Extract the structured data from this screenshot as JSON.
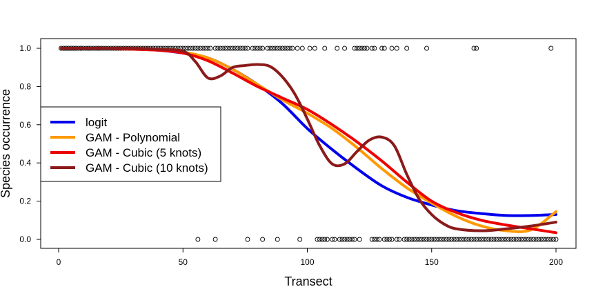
{
  "chart_data": {
    "type": "line",
    "title": "",
    "xlabel": "Transect",
    "ylabel": "Species occurrence",
    "xlim": [
      0,
      200
    ],
    "ylim": [
      0,
      1
    ],
    "x_ticks": [
      0,
      50,
      100,
      150,
      200
    ],
    "y_ticks": [
      0.0,
      0.2,
      0.4,
      0.6,
      0.8,
      1.0
    ],
    "x_tick_labels": [
      "0",
      "50",
      "100",
      "150",
      "200"
    ],
    "y_tick_labels": [
      "0.0",
      "0.2",
      "0.4",
      "0.6",
      "0.8",
      "1.0"
    ],
    "grid": false,
    "legend_position": "left",
    "series": [
      {
        "name": "logit",
        "color": "#0000ee",
        "x": [
          1,
          10,
          20,
          30,
          40,
          50,
          60,
          70,
          80,
          90,
          100,
          110,
          120,
          130,
          140,
          150,
          160,
          170,
          180,
          190,
          200
        ],
        "y": [
          1.0,
          1.0,
          1.0,
          0.995,
          0.99,
          0.975,
          0.95,
          0.89,
          0.81,
          0.71,
          0.58,
          0.47,
          0.37,
          0.28,
          0.22,
          0.18,
          0.15,
          0.135,
          0.125,
          0.125,
          0.13
        ]
      },
      {
        "name": "GAM - Polynomial",
        "color": "#ff9900",
        "x": [
          1,
          10,
          20,
          30,
          40,
          50,
          60,
          70,
          80,
          90,
          100,
          110,
          120,
          130,
          140,
          150,
          160,
          170,
          180,
          190,
          200
        ],
        "y": [
          1.0,
          1.0,
          1.0,
          0.995,
          0.99,
          0.98,
          0.95,
          0.89,
          0.81,
          0.73,
          0.66,
          0.58,
          0.48,
          0.37,
          0.27,
          0.19,
          0.12,
          0.07,
          0.045,
          0.05,
          0.145
        ]
      },
      {
        "name": "GAM - Cubic (5 knots)",
        "color": "#ee0000",
        "x": [
          1,
          10,
          20,
          30,
          40,
          50,
          60,
          70,
          80,
          90,
          100,
          110,
          120,
          130,
          140,
          150,
          160,
          170,
          180,
          190,
          200
        ],
        "y": [
          1.0,
          1.0,
          1.0,
          0.995,
          0.99,
          0.975,
          0.935,
          0.87,
          0.8,
          0.74,
          0.68,
          0.6,
          0.51,
          0.41,
          0.3,
          0.2,
          0.14,
          0.1,
          0.075,
          0.055,
          0.035
        ]
      },
      {
        "name": "GAM - Cubic (10 knots)",
        "color": "#8b1a1a",
        "x": [
          1,
          10,
          20,
          30,
          40,
          50,
          55,
          60,
          65,
          70,
          75,
          80,
          85,
          90,
          95,
          100,
          105,
          110,
          115,
          120,
          125,
          130,
          135,
          140,
          145,
          150,
          155,
          160,
          170,
          180,
          190,
          200
        ],
        "y": [
          1.0,
          1.0,
          1.0,
          1.0,
          0.995,
          0.985,
          0.93,
          0.845,
          0.855,
          0.9,
          0.91,
          0.915,
          0.905,
          0.85,
          0.76,
          0.63,
          0.49,
          0.395,
          0.395,
          0.46,
          0.52,
          0.535,
          0.49,
          0.34,
          0.21,
          0.13,
          0.08,
          0.055,
          0.045,
          0.055,
          0.07,
          0.09
        ]
      }
    ],
    "observations": {
      "x": [
        1,
        2,
        2,
        3,
        3,
        4,
        4,
        5,
        5,
        6,
        6,
        7,
        7,
        8,
        9,
        9,
        10,
        11,
        12,
        12,
        13,
        14,
        15,
        16,
        16,
        17,
        18,
        19,
        20,
        21,
        22,
        23,
        24,
        25,
        26,
        27,
        28,
        29,
        30,
        31,
        32,
        33,
        34,
        35,
        36,
        37,
        38,
        39,
        40,
        41,
        42,
        43,
        44,
        45,
        46,
        47,
        48,
        49,
        50,
        51,
        52,
        53,
        54,
        55,
        56,
        57,
        58,
        59,
        60,
        61,
        63,
        64,
        65,
        66,
        67,
        68,
        69,
        70,
        71,
        72,
        73,
        74,
        75,
        76,
        78,
        79,
        80,
        81,
        82,
        84,
        85,
        86,
        87,
        88,
        89,
        90,
        91,
        92,
        93,
        94,
        96,
        98,
        101,
        103,
        107,
        112,
        115,
        119,
        120,
        121,
        122,
        123,
        124,
        126,
        127,
        130,
        131,
        134,
        136,
        140,
        148,
        167,
        168,
        198,
        56,
        63,
        76,
        82,
        88,
        97,
        104,
        105,
        106,
        107,
        108,
        110,
        111,
        113,
        114,
        115,
        116,
        117,
        118,
        119,
        121,
        126,
        127,
        128,
        129,
        131,
        132,
        133,
        134,
        136,
        137,
        139,
        140,
        141,
        142,
        143,
        144,
        145,
        146,
        147,
        148,
        149,
        150,
        151,
        152,
        153,
        154,
        155,
        156,
        157,
        158,
        159,
        160,
        161,
        162,
        163,
        164,
        165,
        166,
        167,
        168,
        169,
        170,
        171,
        172,
        173,
        174,
        175,
        176,
        177,
        178,
        179,
        180,
        181,
        182,
        183,
        184,
        185,
        186,
        187,
        188,
        189,
        190,
        191,
        192,
        193,
        194,
        195,
        196,
        197,
        198,
        199,
        200
      ],
      "y": [
        1,
        1,
        1,
        1,
        1,
        1,
        1,
        1,
        1,
        1,
        1,
        1,
        1,
        1,
        1,
        1,
        1,
        1,
        1,
        1,
        1,
        1,
        1,
        1,
        1,
        1,
        1,
        1,
        1,
        1,
        1,
        1,
        1,
        1,
        1,
        1,
        1,
        1,
        1,
        1,
        1,
        1,
        1,
        1,
        1,
        1,
        1,
        1,
        1,
        1,
        1,
        1,
        1,
        1,
        1,
        1,
        1,
        1,
        1,
        1,
        1,
        1,
        1,
        1,
        1,
        1,
        1,
        1,
        1,
        1,
        1,
        1,
        1,
        1,
        1,
        1,
        1,
        1,
        1,
        1,
        1,
        1,
        1,
        1,
        1,
        1,
        1,
        1,
        1,
        1,
        1,
        1,
        1,
        1,
        1,
        1,
        1,
        1,
        1,
        1,
        1,
        1,
        1,
        1,
        1,
        1,
        1,
        1,
        1,
        1,
        1,
        1,
        1,
        1,
        1,
        1,
        1,
        1,
        1,
        1,
        1,
        1,
        1,
        1,
        0,
        0,
        0,
        0,
        0,
        0,
        0,
        0,
        0,
        0,
        0,
        0,
        0,
        0,
        0,
        0,
        0,
        0,
        0,
        0,
        0,
        0,
        0,
        0,
        0,
        0,
        0,
        0,
        0,
        0,
        0,
        0,
        0,
        0,
        0,
        0,
        0,
        0,
        0,
        0,
        0,
        0,
        0,
        0,
        0,
        0,
        0,
        0,
        0,
        0,
        0,
        0,
        0,
        0,
        0,
        0,
        0,
        0,
        0,
        0,
        0,
        0,
        0,
        0,
        0,
        0,
        0,
        0,
        0,
        0,
        0,
        0,
        0,
        0,
        0,
        0,
        0,
        0,
        0,
        0,
        0,
        0,
        0,
        0,
        0,
        0,
        0,
        0,
        0,
        0,
        0,
        0,
        0
      ]
    }
  }
}
